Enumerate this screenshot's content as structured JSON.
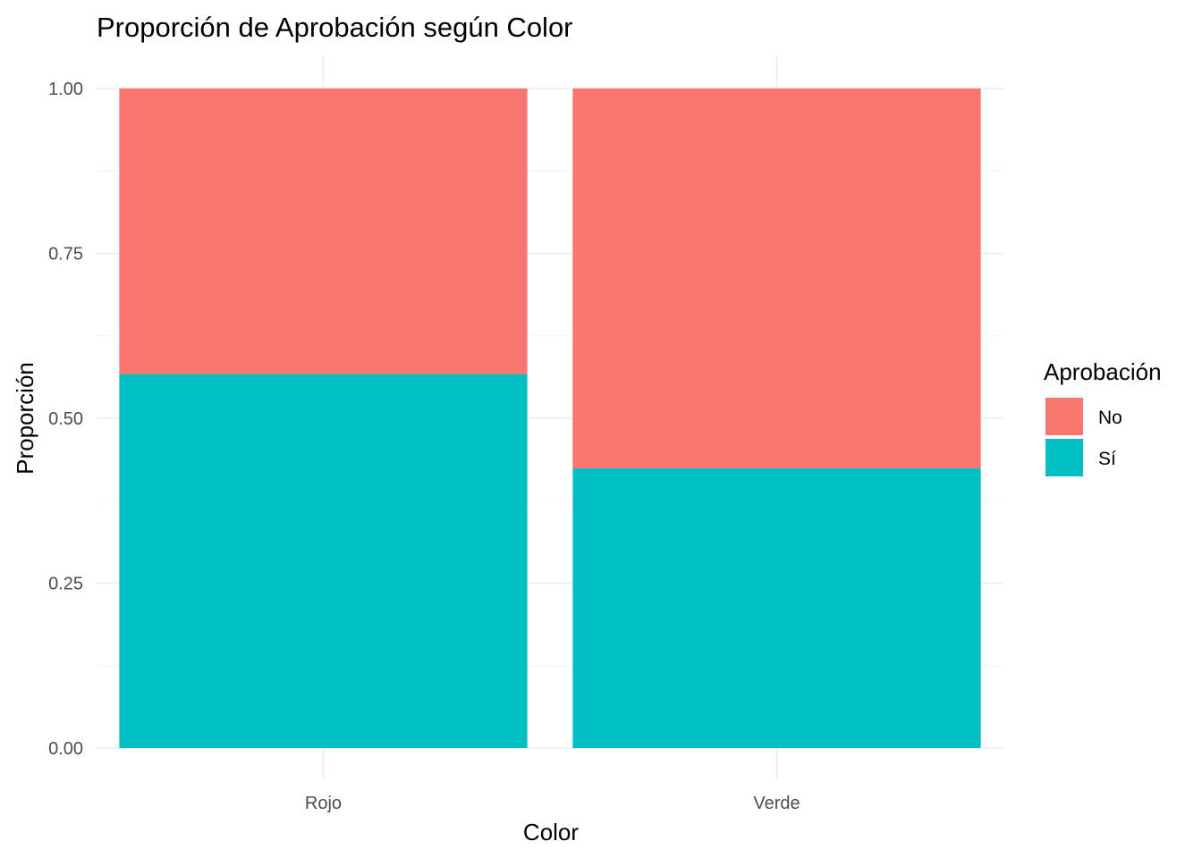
{
  "chart_data": {
    "type": "bar",
    "stacked": true,
    "title": "Proporción de Aprobación según Color",
    "xlabel": "Color",
    "ylabel": "Proporción",
    "categories": [
      "Rojo",
      "Verde"
    ],
    "ylim": [
      0,
      1
    ],
    "yticks": [
      "0.00",
      "0.25",
      "0.50",
      "0.75",
      "1.00"
    ],
    "grid": true,
    "legend": {
      "title": "Aprobación",
      "position": "right"
    },
    "series": [
      {
        "name": "Sí",
        "color": "#00BFC4",
        "values": [
          0.567,
          0.424
        ]
      },
      {
        "name": "No",
        "color": "#F8766D",
        "values": [
          0.433,
          0.576
        ]
      }
    ]
  }
}
